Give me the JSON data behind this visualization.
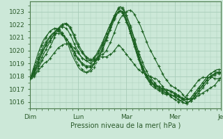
{
  "title": "",
  "xlabel": "Pression niveau de la mer( hPa )",
  "ylabel": "",
  "ylim": [
    1015.5,
    1023.8
  ],
  "yticks": [
    1016,
    1017,
    1018,
    1019,
    1020,
    1021,
    1022,
    1023
  ],
  "xlim": [
    0,
    95
  ],
  "xtick_positions": [
    0,
    24,
    48,
    72,
    95
  ],
  "xtick_labels": [
    "Dim",
    "Lun",
    "Mar",
    "Mer",
    "Je"
  ],
  "bg_color": "#cce8d8",
  "grid_color": "#a8ccb8",
  "line_color": "#1a6020",
  "lines": [
    [
      1017.8,
      1017.8,
      1018.0,
      1018.2,
      1018.4,
      1018.6,
      1018.8,
      1019.0,
      1019.1,
      1019.2,
      1019.4,
      1019.6,
      1019.8,
      1020.0,
      1020.2,
      1020.3,
      1020.4,
      1020.5,
      1020.5,
      1020.5,
      1020.4,
      1020.3,
      1020.2,
      1020.0,
      1019.8,
      1019.6,
      1019.4,
      1019.3,
      1019.2,
      1019.1,
      1019.0,
      1019.1,
      1019.2,
      1019.3,
      1019.4,
      1019.5,
      1019.5,
      1019.5,
      1019.5,
      1019.6,
      1019.7,
      1019.8,
      1020.0,
      1020.2,
      1020.4,
      1020.3,
      1020.1,
      1019.9,
      1019.7,
      1019.5,
      1019.3,
      1019.1,
      1018.9,
      1018.7,
      1018.5,
      1018.4,
      1018.3,
      1018.2,
      1018.1,
      1018.0,
      1018.0,
      1017.9,
      1017.8,
      1017.8,
      1017.6,
      1017.4,
      1017.2,
      1017.0,
      1016.8,
      1016.6,
      1016.4,
      1016.3,
      1016.2,
      1016.1,
      1016.0,
      1016.1,
      1016.2,
      1016.3,
      1016.5,
      1016.7,
      1016.9,
      1017.1,
      1017.3,
      1017.5,
      1017.7,
      1017.8,
      1017.9,
      1017.9,
      1017.9,
      1017.9,
      1017.9,
      1017.9,
      1017.8,
      1017.8,
      1017.8,
      1017.8
    ],
    [
      1017.8,
      1017.9,
      1018.1,
      1018.3,
      1018.6,
      1018.9,
      1019.2,
      1019.5,
      1019.7,
      1020.0,
      1020.3,
      1020.6,
      1021.0,
      1021.3,
      1021.6,
      1021.8,
      1021.9,
      1022.0,
      1022.0,
      1021.9,
      1021.7,
      1021.4,
      1021.0,
      1020.6,
      1020.3,
      1020.0,
      1019.8,
      1019.6,
      1019.4,
      1019.3,
      1019.2,
      1019.2,
      1019.3,
      1019.4,
      1019.5,
      1019.6,
      1019.7,
      1019.8,
      1020.0,
      1020.3,
      1020.6,
      1021.0,
      1021.4,
      1021.8,
      1022.2,
      1022.5,
      1022.7,
      1022.9,
      1023.0,
      1023.1,
      1023.1,
      1023.0,
      1022.8,
      1022.5,
      1022.2,
      1021.9,
      1021.5,
      1021.1,
      1020.7,
      1020.3,
      1020.0,
      1019.7,
      1019.4,
      1019.1,
      1018.8,
      1018.5,
      1018.2,
      1017.9,
      1017.7,
      1017.5,
      1017.3,
      1017.2,
      1017.1,
      1017.0,
      1016.9,
      1016.8,
      1016.6,
      1016.4,
      1016.3,
      1016.2,
      1016.2,
      1016.2,
      1016.3,
      1016.4,
      1016.5,
      1016.6,
      1016.7,
      1016.8,
      1016.9,
      1017.0,
      1017.1,
      1017.2,
      1017.3,
      1017.5,
      1017.7,
      1017.9
    ],
    [
      1017.8,
      1018.0,
      1018.2,
      1018.5,
      1018.8,
      1019.1,
      1019.5,
      1019.8,
      1020.1,
      1020.4,
      1020.7,
      1021.0,
      1021.3,
      1021.5,
      1021.7,
      1021.9,
      1022.0,
      1022.1,
      1022.1,
      1022.0,
      1021.8,
      1021.5,
      1021.2,
      1020.8,
      1020.5,
      1020.2,
      1019.9,
      1019.7,
      1019.5,
      1019.4,
      1019.3,
      1019.3,
      1019.4,
      1019.6,
      1019.8,
      1020.1,
      1020.4,
      1020.7,
      1021.0,
      1021.4,
      1021.8,
      1022.2,
      1022.6,
      1023.0,
      1023.3,
      1023.4,
      1023.3,
      1023.1,
      1022.7,
      1022.3,
      1021.9,
      1021.4,
      1020.9,
      1020.4,
      1019.9,
      1019.5,
      1019.1,
      1018.7,
      1018.4,
      1018.1,
      1017.9,
      1017.7,
      1017.5,
      1017.3,
      1017.2,
      1017.0,
      1016.9,
      1016.8,
      1016.7,
      1016.6,
      1016.5,
      1016.5,
      1016.5,
      1016.4,
      1016.4,
      1016.3,
      1016.2,
      1016.1,
      1016.0,
      1016.0,
      1016.1,
      1016.2,
      1016.3,
      1016.5,
      1016.7,
      1016.9,
      1017.1,
      1017.3,
      1017.5,
      1017.7,
      1017.9,
      1018.0,
      1018.1,
      1018.2,
      1018.2,
      1018.2
    ],
    [
      1017.8,
      1018.1,
      1018.4,
      1018.7,
      1019.1,
      1019.5,
      1019.9,
      1020.2,
      1020.5,
      1020.8,
      1021.0,
      1021.2,
      1021.4,
      1021.6,
      1021.7,
      1021.8,
      1021.8,
      1021.8,
      1021.7,
      1021.5,
      1021.2,
      1020.9,
      1020.5,
      1020.2,
      1019.9,
      1019.6,
      1019.4,
      1019.3,
      1019.2,
      1019.2,
      1019.2,
      1019.3,
      1019.5,
      1019.7,
      1020.0,
      1020.3,
      1020.6,
      1021.0,
      1021.3,
      1021.7,
      1022.0,
      1022.4,
      1022.7,
      1023.0,
      1023.2,
      1023.3,
      1023.2,
      1023.0,
      1022.7,
      1022.3,
      1021.8,
      1021.3,
      1020.8,
      1020.2,
      1019.7,
      1019.2,
      1018.8,
      1018.4,
      1018.1,
      1017.8,
      1017.6,
      1017.4,
      1017.2,
      1017.1,
      1017.0,
      1016.9,
      1016.8,
      1016.7,
      1016.7,
      1016.7,
      1016.6,
      1016.5,
      1016.4,
      1016.3,
      1016.2,
      1016.1,
      1016.0,
      1015.9,
      1015.9,
      1016.0,
      1016.1,
      1016.3,
      1016.5,
      1016.7,
      1016.9,
      1017.1,
      1017.3,
      1017.5,
      1017.7,
      1017.9,
      1018.0,
      1018.1,
      1018.2,
      1018.3,
      1018.3,
      1018.3
    ],
    [
      1017.8,
      1018.0,
      1018.3,
      1018.6,
      1019.0,
      1019.4,
      1019.8,
      1020.1,
      1020.4,
      1020.6,
      1020.8,
      1021.0,
      1021.2,
      1021.3,
      1021.3,
      1021.3,
      1021.2,
      1021.1,
      1020.9,
      1020.7,
      1020.5,
      1020.2,
      1019.9,
      1019.6,
      1019.4,
      1019.2,
      1019.0,
      1018.9,
      1018.8,
      1018.8,
      1018.8,
      1018.9,
      1019.0,
      1019.2,
      1019.4,
      1019.7,
      1020.0,
      1020.4,
      1020.8,
      1021.2,
      1021.6,
      1022.0,
      1022.4,
      1022.7,
      1023.0,
      1023.1,
      1023.0,
      1022.8,
      1022.4,
      1022.0,
      1021.5,
      1021.0,
      1020.5,
      1020.0,
      1019.5,
      1019.0,
      1018.6,
      1018.2,
      1017.9,
      1017.6,
      1017.4,
      1017.2,
      1017.1,
      1017.0,
      1016.9,
      1016.8,
      1016.7,
      1016.6,
      1016.6,
      1016.6,
      1016.5,
      1016.5,
      1016.4,
      1016.3,
      1016.2,
      1016.1,
      1016.0,
      1015.9,
      1015.9,
      1016.0,
      1016.1,
      1016.3,
      1016.5,
      1016.7,
      1016.9,
      1017.1,
      1017.3,
      1017.5,
      1017.7,
      1017.9,
      1018.0,
      1018.1,
      1018.2,
      1018.3,
      1018.3,
      1018.3
    ],
    [
      1017.8,
      1018.1,
      1018.5,
      1018.9,
      1019.3,
      1019.7,
      1020.1,
      1020.4,
      1020.7,
      1020.9,
      1021.1,
      1021.3,
      1021.4,
      1021.5,
      1021.5,
      1021.4,
      1021.3,
      1021.1,
      1020.9,
      1020.7,
      1020.4,
      1020.1,
      1019.8,
      1019.5,
      1019.3,
      1019.1,
      1018.9,
      1018.8,
      1018.7,
      1018.7,
      1018.7,
      1018.8,
      1019.0,
      1019.2,
      1019.5,
      1019.8,
      1020.2,
      1020.6,
      1021.0,
      1021.4,
      1021.8,
      1022.2,
      1022.5,
      1022.8,
      1023.0,
      1023.1,
      1023.0,
      1022.8,
      1022.4,
      1022.0,
      1021.5,
      1021.0,
      1020.5,
      1020.0,
      1019.5,
      1019.1,
      1018.7,
      1018.4,
      1018.1,
      1017.9,
      1017.7,
      1017.5,
      1017.4,
      1017.3,
      1017.2,
      1017.1,
      1017.0,
      1016.9,
      1016.9,
      1016.9,
      1016.8,
      1016.7,
      1016.6,
      1016.5,
      1016.4,
      1016.3,
      1016.2,
      1016.1,
      1016.0,
      1016.0,
      1016.1,
      1016.3,
      1016.5,
      1016.7,
      1016.9,
      1017.1,
      1017.3,
      1017.5,
      1017.7,
      1017.9,
      1018.0,
      1018.1,
      1018.2,
      1018.3,
      1018.3,
      1018.3
    ],
    [
      1017.8,
      1018.2,
      1018.6,
      1019.1,
      1019.5,
      1020.0,
      1020.4,
      1020.7,
      1021.0,
      1021.3,
      1021.5,
      1021.6,
      1021.7,
      1021.7,
      1021.7,
      1021.6,
      1021.4,
      1021.2,
      1020.9,
      1020.6,
      1020.3,
      1019.9,
      1019.6,
      1019.2,
      1018.9,
      1018.7,
      1018.5,
      1018.4,
      1018.3,
      1018.3,
      1018.4,
      1018.5,
      1018.7,
      1019.0,
      1019.3,
      1019.7,
      1020.1,
      1020.5,
      1021.0,
      1021.4,
      1021.8,
      1022.2,
      1022.5,
      1022.8,
      1023.0,
      1023.0,
      1022.9,
      1022.6,
      1022.2,
      1021.8,
      1021.3,
      1020.8,
      1020.3,
      1019.8,
      1019.3,
      1018.9,
      1018.5,
      1018.2,
      1017.9,
      1017.7,
      1017.5,
      1017.4,
      1017.3,
      1017.2,
      1017.1,
      1017.1,
      1017.0,
      1017.0,
      1016.9,
      1016.9,
      1016.8,
      1016.8,
      1016.7,
      1016.6,
      1016.5,
      1016.4,
      1016.3,
      1016.2,
      1016.2,
      1016.2,
      1016.3,
      1016.5,
      1016.7,
      1016.9,
      1017.1,
      1017.3,
      1017.5,
      1017.7,
      1017.9,
      1018.1,
      1018.2,
      1018.3,
      1018.4,
      1018.5,
      1018.5,
      1018.5
    ],
    [
      1017.8,
      1018.3,
      1018.8,
      1019.3,
      1019.8,
      1020.2,
      1020.6,
      1020.9,
      1021.1,
      1021.3,
      1021.5,
      1021.6,
      1021.7,
      1021.7,
      1021.6,
      1021.5,
      1021.3,
      1021.0,
      1020.7,
      1020.4,
      1020.0,
      1019.6,
      1019.3,
      1019.0,
      1018.7,
      1018.5,
      1018.4,
      1018.3,
      1018.3,
      1018.4,
      1018.5,
      1018.7,
      1019.0,
      1019.3,
      1019.7,
      1020.1,
      1020.5,
      1020.9,
      1021.3,
      1021.7,
      1022.0,
      1022.3,
      1022.6,
      1022.8,
      1023.0,
      1023.0,
      1022.9,
      1022.6,
      1022.2,
      1021.8,
      1021.3,
      1020.8,
      1020.3,
      1019.8,
      1019.3,
      1018.9,
      1018.5,
      1018.2,
      1017.9,
      1017.7,
      1017.5,
      1017.4,
      1017.3,
      1017.2,
      1017.2,
      1017.1,
      1017.1,
      1017.0,
      1017.0,
      1016.9,
      1016.9,
      1016.8,
      1016.7,
      1016.6,
      1016.5,
      1016.4,
      1016.3,
      1016.2,
      1016.2,
      1016.2,
      1016.3,
      1016.5,
      1016.7,
      1016.9,
      1017.1,
      1017.3,
      1017.5,
      1017.7,
      1017.9,
      1018.1,
      1018.2,
      1018.3,
      1018.4,
      1018.5,
      1018.5,
      1018.5
    ]
  ],
  "marker_every": 3
}
